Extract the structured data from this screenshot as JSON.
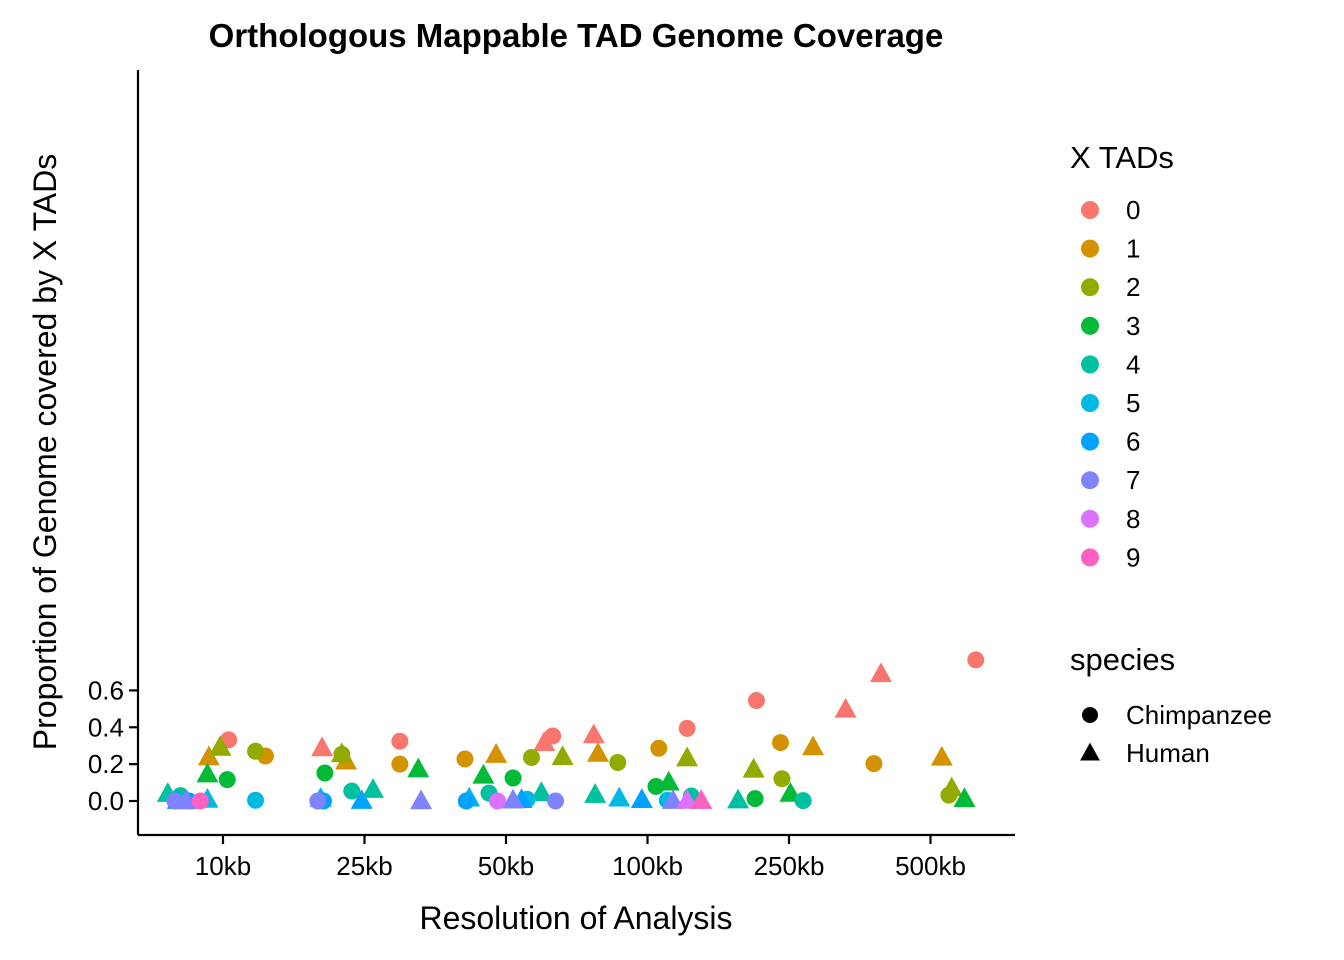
{
  "chart_data": {
    "type": "scatter",
    "title": "Orthologous Mappable TAD Genome Coverage",
    "xlabel": "Resolution of Analysis",
    "ylabel": "Proportion of Genome covered by X TADs",
    "categories": [
      "10kb",
      "25kb",
      "50kb",
      "100kb",
      "250kb",
      "500kb"
    ],
    "y_ticks": [
      0.0,
      0.2,
      0.4,
      0.6
    ],
    "y_tick_labels": [
      "0.0",
      "0.2",
      "0.4",
      "0.6"
    ],
    "ylim": [
      -0.037,
      0.79
    ],
    "jitter": "horizontal jitter within each resolution category",
    "legend_color": {
      "title": "X TADs",
      "entries": [
        {
          "label": "0",
          "color": "#F8766D"
        },
        {
          "label": "1",
          "color": "#D39200"
        },
        {
          "label": "2",
          "color": "#93AA00"
        },
        {
          "label": "3",
          "color": "#00BA38"
        },
        {
          "label": "4",
          "color": "#00C19F"
        },
        {
          "label": "5",
          "color": "#00B9E3"
        },
        {
          "label": "6",
          "color": "#00A2FF"
        },
        {
          "label": "7",
          "color": "#7F83FF"
        },
        {
          "label": "8",
          "color": "#DB72FB"
        },
        {
          "label": "9",
          "color": "#FF61C3"
        }
      ]
    },
    "legend_shape": {
      "title": "species",
      "entries": [
        {
          "label": "Chimpanzee",
          "shape": "circle"
        },
        {
          "label": "Human",
          "shape": "triangle"
        }
      ]
    },
    "points": [
      {
        "res": "10kb",
        "offset": 0.04,
        "y": 0.332,
        "tads": "0",
        "species": "Chimpanzee"
      },
      {
        "res": "10kb",
        "offset": -0.02,
        "y": 0.29,
        "tads": "0",
        "species": "Human"
      },
      {
        "res": "10kb",
        "offset": 0.3,
        "y": 0.244,
        "tads": "1",
        "species": "Chimpanzee"
      },
      {
        "res": "10kb",
        "offset": -0.1,
        "y": 0.238,
        "tads": "1",
        "species": "Human"
      },
      {
        "res": "10kb",
        "offset": 0.23,
        "y": 0.27,
        "tads": "2",
        "species": "Chimpanzee"
      },
      {
        "res": "10kb",
        "offset": -0.02,
        "y": 0.294,
        "tads": "2",
        "species": "Human"
      },
      {
        "res": "10kb",
        "offset": 0.03,
        "y": 0.116,
        "tads": "3",
        "species": "Chimpanzee"
      },
      {
        "res": "10kb",
        "offset": -0.11,
        "y": 0.146,
        "tads": "3",
        "species": "Human"
      },
      {
        "res": "10kb",
        "offset": -0.3,
        "y": 0.029,
        "tads": "4",
        "species": "Chimpanzee"
      },
      {
        "res": "10kb",
        "offset": -0.39,
        "y": 0.04,
        "tads": "4",
        "species": "Human"
      },
      {
        "res": "10kb",
        "offset": 0.23,
        "y": 0.004,
        "tads": "5",
        "species": "Chimpanzee"
      },
      {
        "res": "10kb",
        "offset": -0.11,
        "y": 0.008,
        "tads": "5",
        "species": "Human"
      },
      {
        "res": "10kb",
        "offset": -0.24,
        "y": 0.0,
        "tads": "6",
        "species": "Chimpanzee"
      },
      {
        "res": "10kb",
        "offset": -0.32,
        "y": 0.002,
        "tads": "6",
        "species": "Human"
      },
      {
        "res": "10kb",
        "offset": -0.34,
        "y": 0.0,
        "tads": "7",
        "species": "Chimpanzee"
      },
      {
        "res": "10kb",
        "offset": -0.26,
        "y": 0.0,
        "tads": "7",
        "species": "Human"
      },
      {
        "res": "10kb",
        "offset": -0.16,
        "y": 0.0,
        "tads": "9",
        "species": "Chimpanzee"
      },
      {
        "res": "25kb",
        "offset": 0.25,
        "y": 0.324,
        "tads": "0",
        "species": "Chimpanzee"
      },
      {
        "res": "25kb",
        "offset": -0.3,
        "y": 0.288,
        "tads": "0",
        "species": "Human"
      },
      {
        "res": "25kb",
        "offset": 0.25,
        "y": 0.2,
        "tads": "1",
        "species": "Chimpanzee"
      },
      {
        "res": "25kb",
        "offset": -0.13,
        "y": 0.216,
        "tads": "1",
        "species": "Human"
      },
      {
        "res": "25kb",
        "offset": -0.16,
        "y": 0.253,
        "tads": "2",
        "species": "Chimpanzee"
      },
      {
        "res": "25kb",
        "offset": -0.16,
        "y": 0.256,
        "tads": "2",
        "species": "Human"
      },
      {
        "res": "25kb",
        "offset": -0.28,
        "y": 0.152,
        "tads": "3",
        "species": "Chimpanzee"
      },
      {
        "res": "25kb",
        "offset": 0.38,
        "y": 0.173,
        "tads": "3",
        "species": "Human"
      },
      {
        "res": "25kb",
        "offset": -0.09,
        "y": 0.054,
        "tads": "4",
        "species": "Chimpanzee"
      },
      {
        "res": "25kb",
        "offset": 0.06,
        "y": 0.062,
        "tads": "4",
        "species": "Human"
      },
      {
        "res": "25kb",
        "offset": -0.31,
        "y": 0.013,
        "tads": "5",
        "species": "Human"
      },
      {
        "res": "25kb",
        "offset": -0.29,
        "y": 0.0,
        "tads": "6",
        "species": "Chimpanzee"
      },
      {
        "res": "25kb",
        "offset": -0.02,
        "y": 0.002,
        "tads": "6",
        "species": "Human"
      },
      {
        "res": "25kb",
        "offset": -0.33,
        "y": 0.0,
        "tads": "7",
        "species": "Chimpanzee"
      },
      {
        "res": "25kb",
        "offset": 0.4,
        "y": 0.0,
        "tads": "7",
        "species": "Human"
      },
      {
        "res": "50kb",
        "offset": 0.33,
        "y": 0.353,
        "tads": "0",
        "species": "Chimpanzee"
      },
      {
        "res": "50kb",
        "offset": 0.27,
        "y": 0.316,
        "tads": "0",
        "species": "Human"
      },
      {
        "res": "50kb",
        "offset": -0.29,
        "y": 0.228,
        "tads": "1",
        "species": "Chimpanzee"
      },
      {
        "res": "50kb",
        "offset": -0.07,
        "y": 0.252,
        "tads": "1",
        "species": "Human"
      },
      {
        "res": "50kb",
        "offset": 0.18,
        "y": 0.236,
        "tads": "2",
        "species": "Chimpanzee"
      },
      {
        "res": "50kb",
        "offset": 0.4,
        "y": 0.24,
        "tads": "2",
        "species": "Human"
      },
      {
        "res": "50kb",
        "offset": 0.05,
        "y": 0.125,
        "tads": "3",
        "species": "Chimpanzee"
      },
      {
        "res": "50kb",
        "offset": -0.16,
        "y": 0.139,
        "tads": "3",
        "species": "Human"
      },
      {
        "res": "50kb",
        "offset": -0.12,
        "y": 0.043,
        "tads": "4",
        "species": "Chimpanzee"
      },
      {
        "res": "50kb",
        "offset": 0.25,
        "y": 0.045,
        "tads": "4",
        "species": "Human"
      },
      {
        "res": "50kb",
        "offset": 0.15,
        "y": 0.009,
        "tads": "5",
        "species": "Chimpanzee"
      },
      {
        "res": "50kb",
        "offset": -0.26,
        "y": 0.015,
        "tads": "5",
        "species": "Human"
      },
      {
        "res": "50kb",
        "offset": -0.28,
        "y": 0.0,
        "tads": "6",
        "species": "Chimpanzee"
      },
      {
        "res": "50kb",
        "offset": 0.11,
        "y": 0.007,
        "tads": "6",
        "species": "Human"
      },
      {
        "res": "50kb",
        "offset": 0.35,
        "y": 0.0,
        "tads": "7",
        "species": "Chimpanzee"
      },
      {
        "res": "50kb",
        "offset": 0.05,
        "y": 0.004,
        "tads": "7",
        "species": "Human"
      },
      {
        "res": "50kb",
        "offset": -0.06,
        "y": 0.0,
        "tads": "8",
        "species": "Chimpanzee"
      },
      {
        "res": "100kb",
        "offset": 0.28,
        "y": 0.394,
        "tads": "0",
        "species": "Chimpanzee"
      },
      {
        "res": "100kb",
        "offset": -0.38,
        "y": 0.358,
        "tads": "0",
        "species": "Human"
      },
      {
        "res": "100kb",
        "offset": 0.08,
        "y": 0.286,
        "tads": "1",
        "species": "Chimpanzee"
      },
      {
        "res": "100kb",
        "offset": -0.35,
        "y": 0.258,
        "tads": "1",
        "species": "Human"
      },
      {
        "res": "100kb",
        "offset": -0.21,
        "y": 0.209,
        "tads": "2",
        "species": "Chimpanzee"
      },
      {
        "res": "100kb",
        "offset": 0.28,
        "y": 0.233,
        "tads": "2",
        "species": "Human"
      },
      {
        "res": "100kb",
        "offset": 0.06,
        "y": 0.079,
        "tads": "3",
        "species": "Chimpanzee"
      },
      {
        "res": "100kb",
        "offset": 0.15,
        "y": 0.102,
        "tads": "3",
        "species": "Human"
      },
      {
        "res": "100kb",
        "offset": 0.31,
        "y": 0.027,
        "tads": "4",
        "species": "Chimpanzee"
      },
      {
        "res": "100kb",
        "offset": -0.37,
        "y": 0.035,
        "tads": "4",
        "species": "Human"
      },
      {
        "res": "100kb",
        "offset": 0.14,
        "y": 0.004,
        "tads": "5",
        "species": "Chimpanzee"
      },
      {
        "res": "100kb",
        "offset": -0.2,
        "y": 0.015,
        "tads": "5",
        "species": "Human"
      },
      {
        "res": "100kb",
        "offset": -0.04,
        "y": 0.007,
        "tads": "6",
        "species": "Human"
      },
      {
        "res": "100kb",
        "offset": 0.18,
        "y": 0.002,
        "tads": "7",
        "species": "Human"
      },
      {
        "res": "100kb",
        "offset": 0.28,
        "y": 0.003,
        "tads": "8",
        "species": "Human"
      },
      {
        "res": "100kb",
        "offset": 0.38,
        "y": 0.002,
        "tads": "9",
        "species": "Human"
      },
      {
        "res": "250kb",
        "offset": -0.23,
        "y": 0.545,
        "tads": "0",
        "species": "Chimpanzee"
      },
      {
        "res": "250kb",
        "offset": 0.4,
        "y": 0.497,
        "tads": "0",
        "species": "Human"
      },
      {
        "res": "250kb",
        "offset": -0.06,
        "y": 0.317,
        "tads": "1",
        "species": "Chimpanzee"
      },
      {
        "res": "250kb",
        "offset": 0.17,
        "y": 0.293,
        "tads": "1",
        "species": "Human"
      },
      {
        "res": "250kb",
        "offset": -0.05,
        "y": 0.121,
        "tads": "2",
        "species": "Chimpanzee"
      },
      {
        "res": "250kb",
        "offset": -0.25,
        "y": 0.172,
        "tads": "2",
        "species": "Human"
      },
      {
        "res": "250kb",
        "offset": -0.24,
        "y": 0.013,
        "tads": "3",
        "species": "Chimpanzee"
      },
      {
        "res": "250kb",
        "offset": 0.01,
        "y": 0.041,
        "tads": "3",
        "species": "Human"
      },
      {
        "res": "250kb",
        "offset": 0.1,
        "y": 0.002,
        "tads": "4",
        "species": "Chimpanzee"
      },
      {
        "res": "250kb",
        "offset": -0.36,
        "y": 0.005,
        "tads": "4",
        "species": "Human"
      },
      {
        "res": "500kb",
        "offset": 0.32,
        "y": 0.766,
        "tads": "0",
        "species": "Chimpanzee"
      },
      {
        "res": "500kb",
        "offset": -0.35,
        "y": 0.69,
        "tads": "0",
        "species": "Human"
      },
      {
        "res": "500kb",
        "offset": -0.4,
        "y": 0.203,
        "tads": "1",
        "species": "Chimpanzee"
      },
      {
        "res": "500kb",
        "offset": 0.08,
        "y": 0.237,
        "tads": "1",
        "species": "Human"
      },
      {
        "res": "500kb",
        "offset": 0.13,
        "y": 0.032,
        "tads": "2",
        "species": "Chimpanzee"
      },
      {
        "res": "500kb",
        "offset": 0.15,
        "y": 0.07,
        "tads": "2",
        "species": "Human"
      },
      {
        "res": "500kb",
        "offset": 0.24,
        "y": 0.012,
        "tads": "3",
        "species": "Human"
      }
    ]
  }
}
